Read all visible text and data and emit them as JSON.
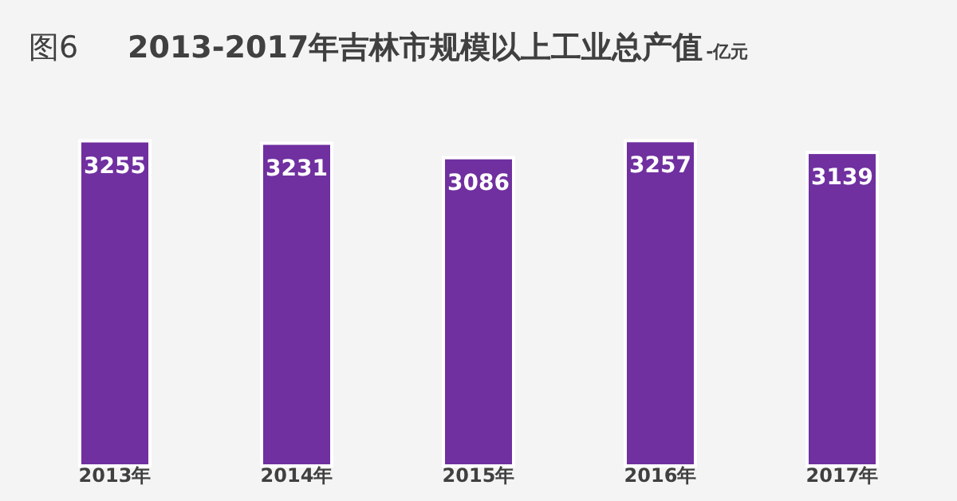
{
  "chart_data": {
    "type": "bar",
    "title": "2013-2017年吉林市规模以上工业总产值",
    "subtitle": "-亿元",
    "annotations": [
      "图6"
    ],
    "categories": [
      "2013年",
      "2014年",
      "2015年",
      "2016年",
      "2017年"
    ],
    "values": [
      3255,
      3231,
      3086,
      3257,
      3139
    ],
    "color": "#7030a0",
    "data_labels": true
  }
}
